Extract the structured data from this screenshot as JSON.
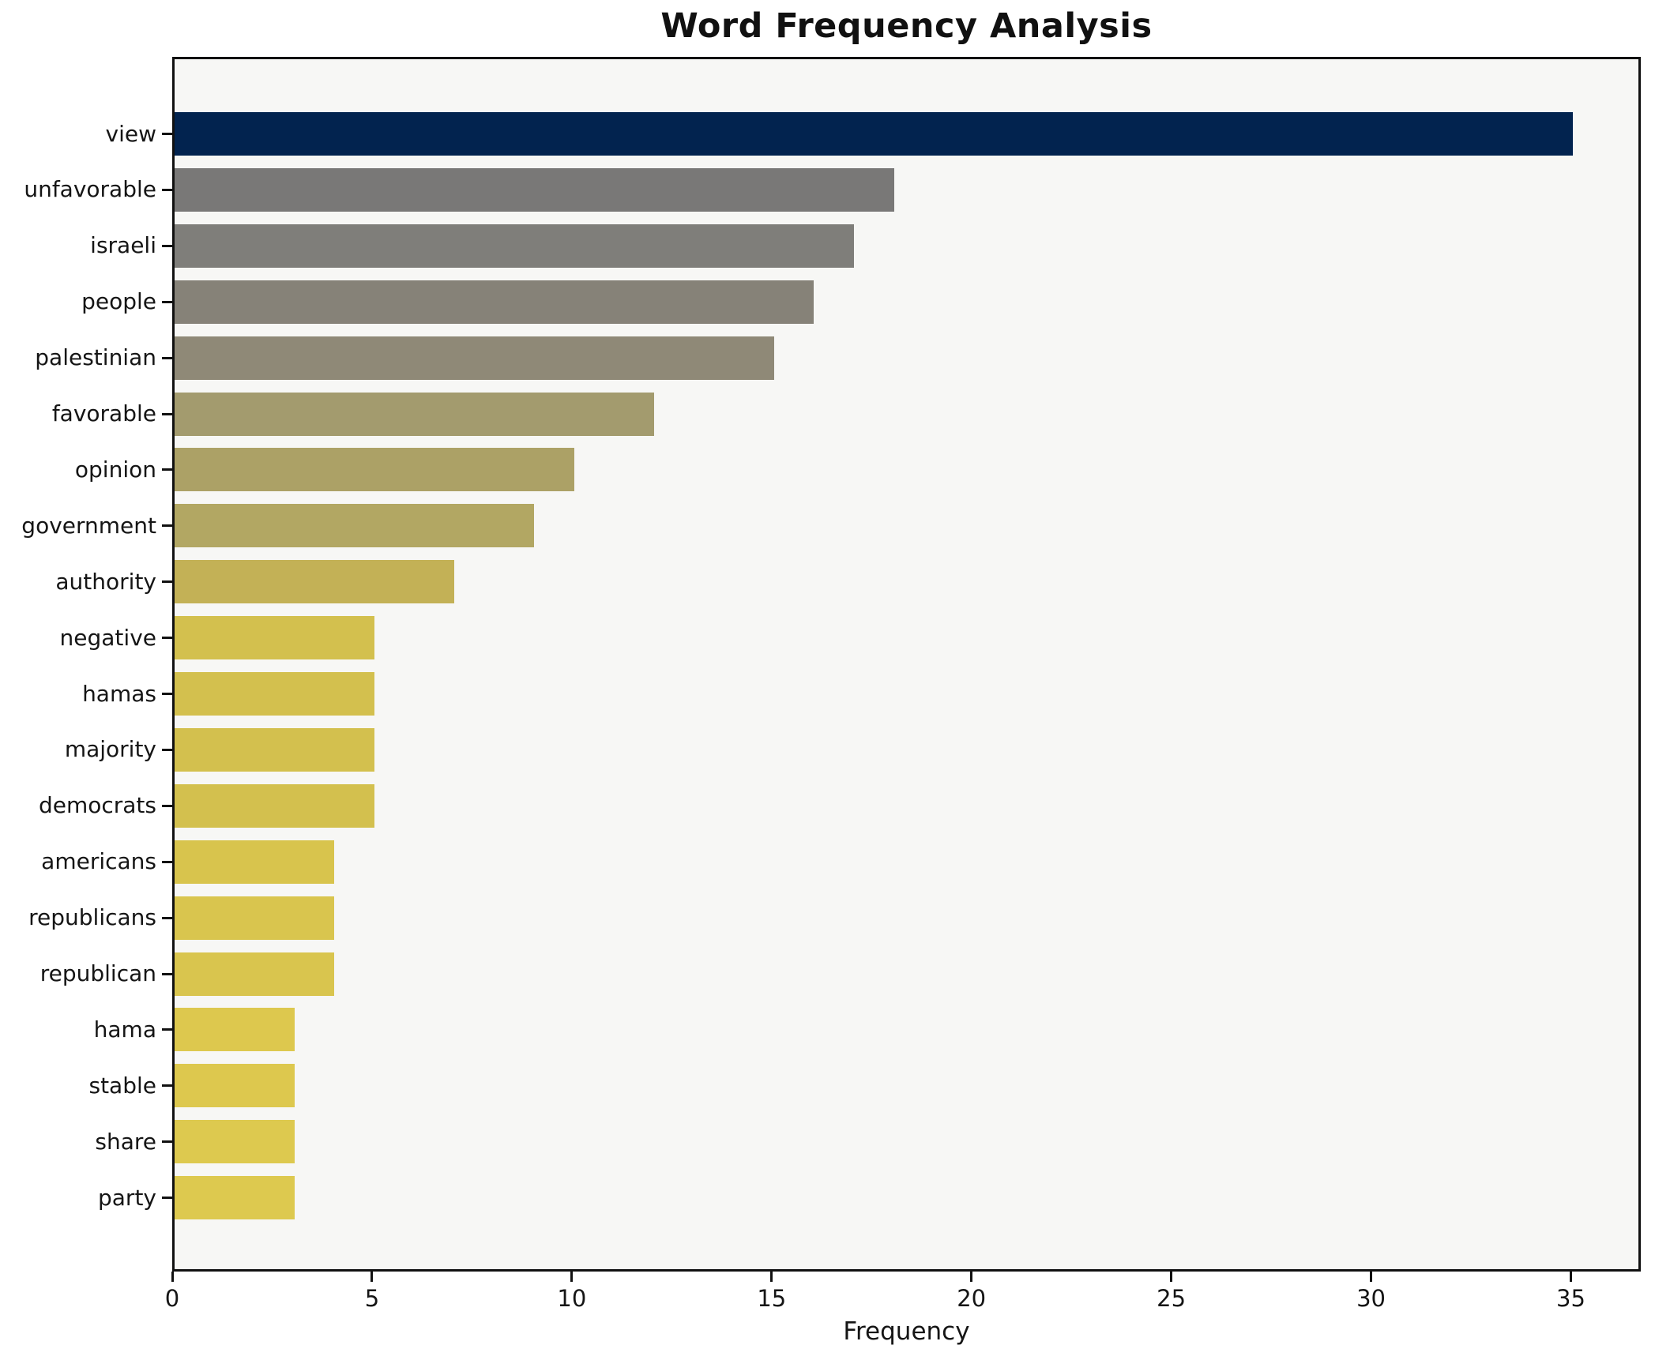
{
  "chart_data": {
    "type": "bar",
    "orientation": "horizontal",
    "title": "Word Frequency Analysis",
    "xlabel": "Frequency",
    "ylabel": "",
    "categories": [
      "view",
      "unfavorable",
      "israeli",
      "people",
      "palestinian",
      "favorable",
      "opinion",
      "government",
      "authority",
      "negative",
      "hamas",
      "majority",
      "democrats",
      "americans",
      "republicans",
      "republican",
      "hama",
      "stable",
      "share",
      "party"
    ],
    "values": [
      35,
      18,
      17,
      16,
      15,
      12,
      10,
      9,
      7,
      5,
      5,
      5,
      5,
      4,
      4,
      4,
      3,
      3,
      3,
      3
    ],
    "bar_colors": [
      "#02234f",
      "#797877",
      "#7f7e7a",
      "#868278",
      "#8f8977",
      "#a39b6e",
      "#aca166",
      "#b2a763",
      "#c3b156",
      "#d3c04e",
      "#d3c04e",
      "#d3c04e",
      "#d3c04e",
      "#d8c44d",
      "#d9c54e",
      "#d9c54e",
      "#ddc84e",
      "#ddc84e",
      "#ddc94f",
      "#ddc94f"
    ],
    "x_ticks": [
      0,
      5,
      10,
      15,
      20,
      25,
      30,
      35
    ],
    "xlim": [
      0,
      36.75
    ],
    "grid": false,
    "legend": null,
    "colormap": "cividis",
    "plot_background": "#f7f7f5",
    "frame_color": "#111111",
    "text_color": "#151515"
  }
}
